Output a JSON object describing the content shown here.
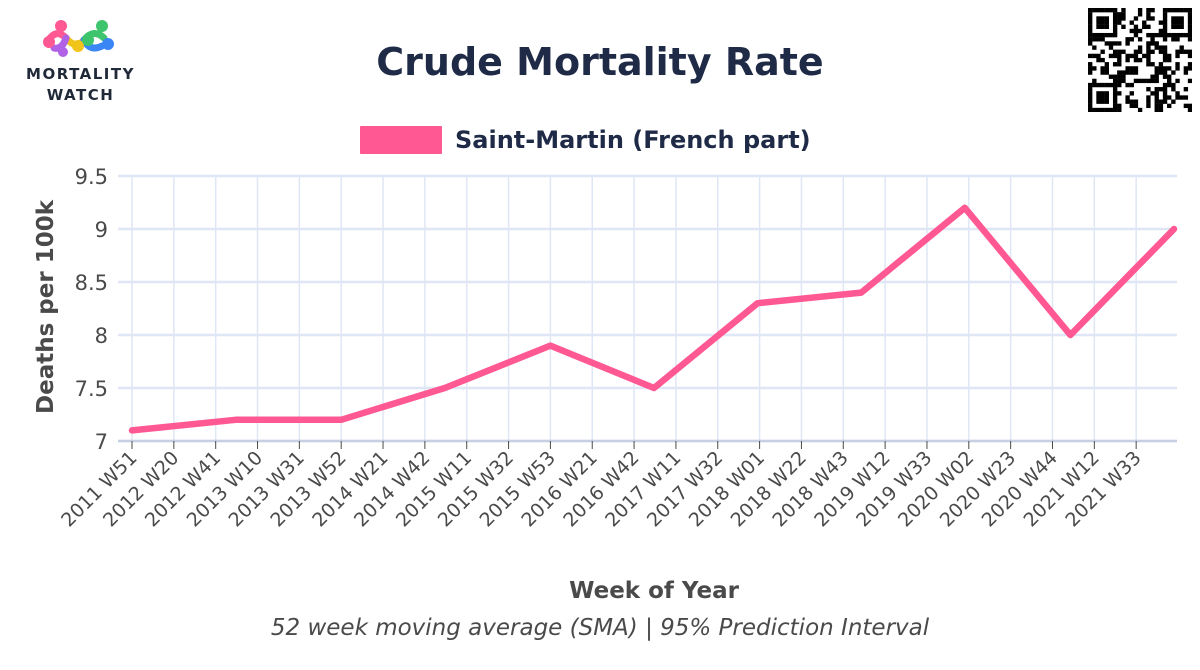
{
  "brand": {
    "line1": "MORTALITY",
    "line2": "WATCH"
  },
  "header": {
    "title": "Crude Mortality Rate"
  },
  "colors": {
    "series": "#ff5892",
    "title": "#1e2a46",
    "grid": "#dfe6f5",
    "axis_text": "#4a4a4a"
  },
  "chart_data": {
    "type": "line",
    "title": "Crude Mortality Rate",
    "xlabel": "Week of Year",
    "ylabel": "Deaths per 100k",
    "footnote": "52 week moving average (SMA) | 95% Prediction Interval",
    "ylim": [
      7,
      9.5
    ],
    "y_ticks": [
      "7",
      "7.5",
      "8",
      "8.5",
      "9",
      "9.5"
    ],
    "y_tick_values": [
      7,
      7.5,
      8,
      8.5,
      9,
      9.5
    ],
    "x_tick_labels": [
      "2011 W51",
      "2012 W20",
      "2012 W41",
      "2013 W10",
      "2013 W31",
      "2013 W52",
      "2014 W21",
      "2014 W42",
      "2015 W11",
      "2015 W32",
      "2015 W53",
      "2016 W21",
      "2016 W42",
      "2017 W11",
      "2017 W32",
      "2018 W01",
      "2018 W22",
      "2018 W43",
      "2019 W12",
      "2019 W33",
      "2020 W02",
      "2020 W23",
      "2020 W44",
      "2021 W12",
      "2021 W33"
    ],
    "grid": true,
    "legend_position": "top-center",
    "series": [
      {
        "name": "Saint-Martin (French part)",
        "color": "#ff5892",
        "x": [
          "2011 W51",
          "2012 W51",
          "2013 W52",
          "2014 W52",
          "2015 W53",
          "2016 W52",
          "2017 W52",
          "2018 W52",
          "2019 W52",
          "2020 W53",
          "2021 W52"
        ],
        "values": [
          7.1,
          7.2,
          7.2,
          7.5,
          7.9,
          7.5,
          8.3,
          8.4,
          9.2,
          8.0,
          9.0
        ]
      }
    ]
  }
}
